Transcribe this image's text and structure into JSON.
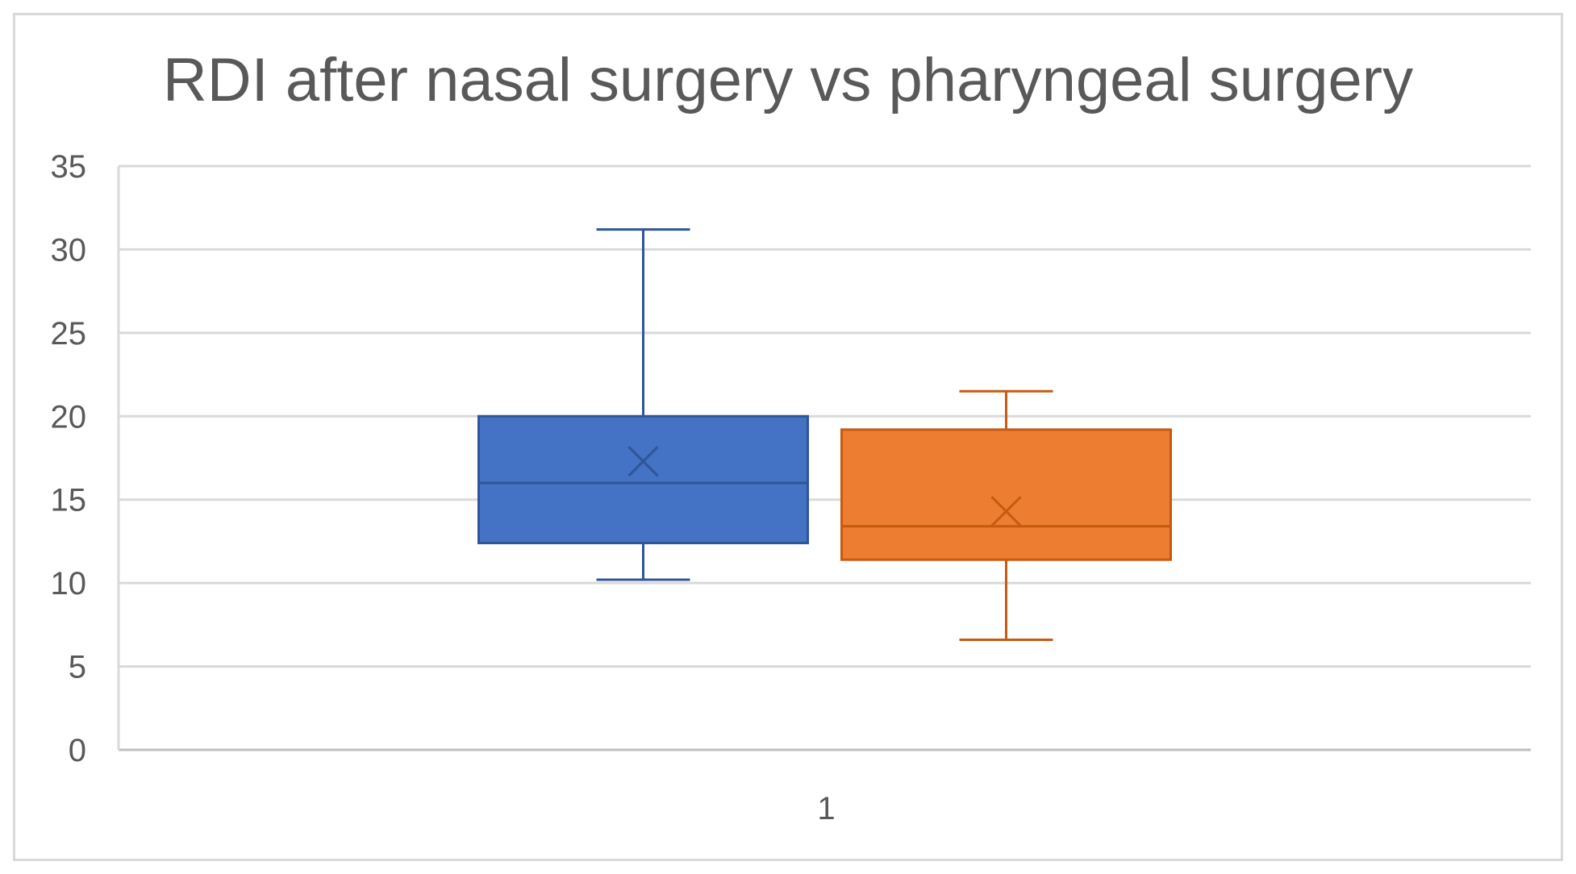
{
  "chart_data": {
    "type": "boxplot",
    "title": "RDI after nasal surgery vs pharyngeal surgery",
    "categories": [
      "1"
    ],
    "ylim": [
      0,
      35
    ],
    "yticks": [
      0,
      5,
      10,
      15,
      20,
      25,
      30,
      35
    ],
    "grid": true,
    "legend": "none",
    "series": [
      {
        "color": "#4472c4",
        "stroke": "#2f5597",
        "min": 10.2,
        "q1": 12.4,
        "median": 16.0,
        "q3": 20.0,
        "max": 31.2,
        "mean": 17.3
      },
      {
        "color": "#ed7d31",
        "stroke": "#c55a11",
        "min": 6.6,
        "q1": 11.4,
        "median": 13.4,
        "q3": 19.2,
        "max": 21.5,
        "mean": 14.3
      }
    ]
  }
}
